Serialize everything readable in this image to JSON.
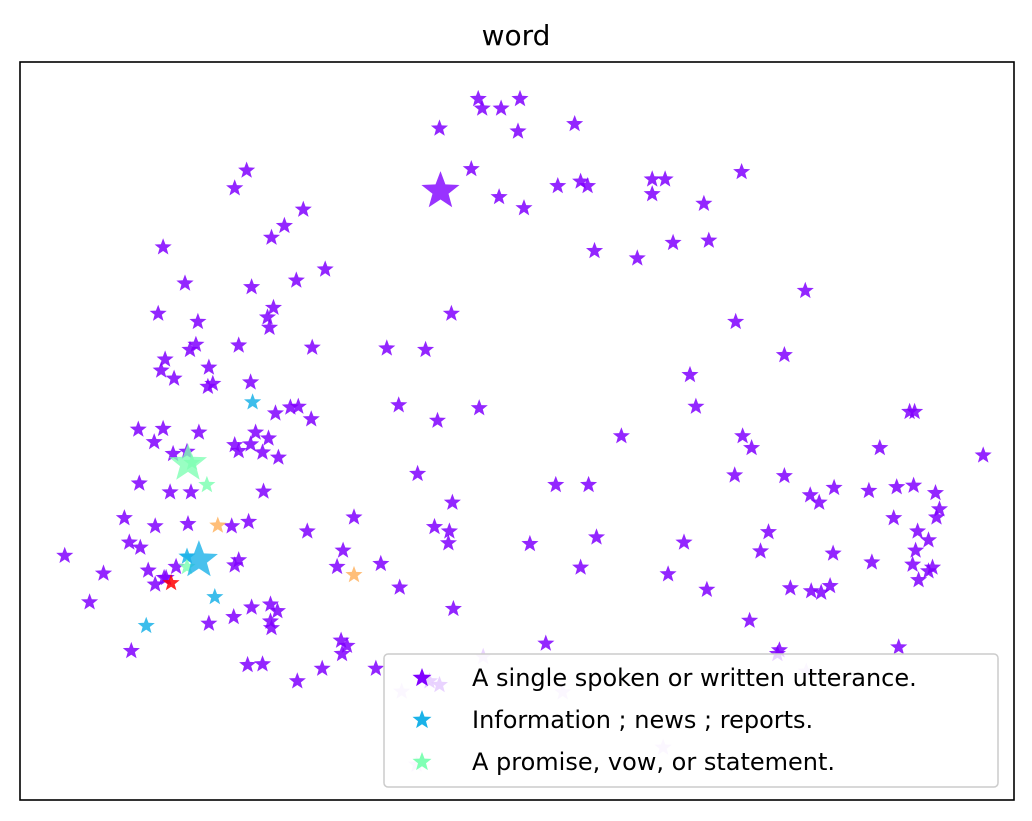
{
  "chart_data": {
    "type": "scatter",
    "title": "word",
    "xlabel": "",
    "ylabel": "",
    "show_ticks": false,
    "grid": false,
    "xlim": [
      0,
      100
    ],
    "ylim": [
      0,
      100
    ],
    "legend_position": "bottom-right",
    "series": [
      {
        "name": "A single spoken or written utterance.",
        "color": "#8000ff",
        "marker": "star",
        "points": [
          [
            46.1,
            95.0
          ],
          [
            50.3,
            95.0
          ],
          [
            48.4,
            93.7
          ],
          [
            46.5,
            93.7
          ],
          [
            55.8,
            91.6
          ],
          [
            42.2,
            91.0
          ],
          [
            50.1,
            90.6
          ],
          [
            22.8,
            85.3
          ],
          [
            72.6,
            85.1
          ],
          [
            45.4,
            85.5
          ],
          [
            63.6,
            84.1
          ],
          [
            64.9,
            84.1
          ],
          [
            56.4,
            83.8
          ],
          [
            57.1,
            83.2
          ],
          [
            54.1,
            83.2
          ],
          [
            21.6,
            82.9
          ],
          [
            48.2,
            81.7
          ],
          [
            63.6,
            82.1
          ],
          [
            68.8,
            80.8
          ],
          [
            50.7,
            80.2
          ],
          [
            28.5,
            80.0
          ],
          [
            26.6,
            77.8
          ],
          [
            25.3,
            76.2
          ],
          [
            69.3,
            75.8
          ],
          [
            65.7,
            75.5
          ],
          [
            14.4,
            74.9
          ],
          [
            57.8,
            74.4
          ],
          [
            62.1,
            73.4
          ],
          [
            30.7,
            71.9
          ],
          [
            27.8,
            70.4
          ],
          [
            16.6,
            70.0
          ],
          [
            23.3,
            69.5
          ],
          [
            79.0,
            69.0
          ],
          [
            25.5,
            66.7
          ],
          [
            24.9,
            65.4
          ],
          [
            13.9,
            65.9
          ],
          [
            17.9,
            64.8
          ],
          [
            43.4,
            65.9
          ],
          [
            25.1,
            64.0
          ],
          [
            72.0,
            64.8
          ],
          [
            17.7,
            61.7
          ],
          [
            22.0,
            61.6
          ],
          [
            17.1,
            61.0
          ],
          [
            29.4,
            61.3
          ],
          [
            36.9,
            61.2
          ],
          [
            40.8,
            61.0
          ],
          [
            14.6,
            59.7
          ],
          [
            76.9,
            60.3
          ],
          [
            19.0,
            58.6
          ],
          [
            14.2,
            58.2
          ],
          [
            15.5,
            57.1
          ],
          [
            19.4,
            56.4
          ],
          [
            18.9,
            56.0
          ],
          [
            23.2,
            56.6
          ],
          [
            67.4,
            57.6
          ],
          [
            38.1,
            53.5
          ],
          [
            46.2,
            53.1
          ],
          [
            27.2,
            53.2
          ],
          [
            28.0,
            53.3
          ],
          [
            68.0,
            53.3
          ],
          [
            25.7,
            52.4
          ],
          [
            42.0,
            51.4
          ],
          [
            29.3,
            51.6
          ],
          [
            11.9,
            50.2
          ],
          [
            14.4,
            50.3
          ],
          [
            18.0,
            49.8
          ],
          [
            13.5,
            48.5
          ],
          [
            25.0,
            49.0
          ],
          [
            21.6,
            48.1
          ],
          [
            23.7,
            49.8
          ],
          [
            23.2,
            48.2
          ],
          [
            60.5,
            49.3
          ],
          [
            89.5,
            52.6
          ],
          [
            90.0,
            52.6
          ],
          [
            72.7,
            49.3
          ],
          [
            73.6,
            47.7
          ],
          [
            15.4,
            46.9
          ],
          [
            16.8,
            47.2
          ],
          [
            22.0,
            47.3
          ],
          [
            24.4,
            47.1
          ],
          [
            26.0,
            46.4
          ],
          [
            86.5,
            47.7
          ],
          [
            96.9,
            46.7
          ],
          [
            40.0,
            44.2
          ],
          [
            71.9,
            44.0
          ],
          [
            76.9,
            43.9
          ],
          [
            53.9,
            42.7
          ],
          [
            57.2,
            42.7
          ],
          [
            12.0,
            42.9
          ],
          [
            15.1,
            41.7
          ],
          [
            17.2,
            41.7
          ],
          [
            24.5,
            41.8
          ],
          [
            81.9,
            42.3
          ],
          [
            43.5,
            40.3
          ],
          [
            79.5,
            41.3
          ],
          [
            80.4,
            40.3
          ],
          [
            85.4,
            41.9
          ],
          [
            88.2,
            42.4
          ],
          [
            89.9,
            42.6
          ],
          [
            92.1,
            41.6
          ],
          [
            10.5,
            38.2
          ],
          [
            33.6,
            38.3
          ],
          [
            87.9,
            38.2
          ],
          [
            92.5,
            39.4
          ],
          [
            92.2,
            38.3
          ],
          [
            16.9,
            37.4
          ],
          [
            13.6,
            37.1
          ],
          [
            21.3,
            37.1
          ],
          [
            23.0,
            37.7
          ],
          [
            28.9,
            36.4
          ],
          [
            41.7,
            37.0
          ],
          [
            43.2,
            36.4
          ],
          [
            90.3,
            36.4
          ],
          [
            75.3,
            36.3
          ],
          [
            58.0,
            35.6
          ],
          [
            11.0,
            34.9
          ],
          [
            12.1,
            34.2
          ],
          [
            51.3,
            34.7
          ],
          [
            43.1,
            34.8
          ],
          [
            66.8,
            34.9
          ],
          [
            32.5,
            33.8
          ],
          [
            74.5,
            33.7
          ],
          [
            90.1,
            33.8
          ],
          [
            81.8,
            33.4
          ],
          [
            91.4,
            35.2
          ],
          [
            56.4,
            31.5
          ],
          [
            22.0,
            32.5
          ],
          [
            15.7,
            31.6
          ],
          [
            31.9,
            31.6
          ],
          [
            14.7,
            30.1
          ],
          [
            21.6,
            31.8
          ],
          [
            4.5,
            33.1
          ],
          [
            36.3,
            32.0
          ],
          [
            65.2,
            30.6
          ],
          [
            8.4,
            30.7
          ],
          [
            12.9,
            31.1
          ],
          [
            14.5,
            30.1
          ],
          [
            13.6,
            29.2
          ],
          [
            85.7,
            32.2
          ],
          [
            89.8,
            31.9
          ],
          [
            91.4,
            31.0
          ],
          [
            91.8,
            31.5
          ],
          [
            90.4,
            29.8
          ],
          [
            38.2,
            28.8
          ],
          [
            69.1,
            28.5
          ],
          [
            77.5,
            28.7
          ],
          [
            79.6,
            28.3
          ],
          [
            80.6,
            28.1
          ],
          [
            81.5,
            29.0
          ],
          [
            7.0,
            26.8
          ],
          [
            23.3,
            26.1
          ],
          [
            25.2,
            26.5
          ],
          [
            25.9,
            25.6
          ],
          [
            43.6,
            25.9
          ],
          [
            19.0,
            23.9
          ],
          [
            21.5,
            24.8
          ],
          [
            73.4,
            24.3
          ],
          [
            25.3,
            23.3
          ],
          [
            25.2,
            24.2
          ],
          [
            11.2,
            20.2
          ],
          [
            32.3,
            21.6
          ],
          [
            32.9,
            20.9
          ],
          [
            32.4,
            19.8
          ],
          [
            52.9,
            21.2
          ],
          [
            22.9,
            18.3
          ],
          [
            24.4,
            18.4
          ],
          [
            30.4,
            17.8
          ],
          [
            35.8,
            17.8
          ],
          [
            76.2,
            19.8
          ],
          [
            76.4,
            20.3
          ],
          [
            88.4,
            20.7
          ],
          [
            27.9,
            16.1
          ],
          [
            41.2,
            16.1
          ],
          [
            42.2,
            15.6
          ]
        ]
      },
      {
        "name": "Information ; news ; reports.",
        "color": "#1ab2e8",
        "marker": "star",
        "points": [
          [
            23.4,
            53.9
          ],
          [
            16.8,
            33.0
          ],
          [
            19.6,
            27.5
          ],
          [
            12.7,
            23.6
          ]
        ]
      },
      {
        "name": "A promise, vow, or statement.",
        "color": "#80ffb4",
        "marker": "star",
        "points": [
          [
            17.3,
            45.7
          ],
          [
            18.8,
            42.7
          ],
          [
            16.8,
            31.6
          ]
        ]
      },
      {
        "name": "",
        "color": "#ffb360",
        "marker": "star",
        "points": [
          [
            19.9,
            37.2
          ],
          [
            33.6,
            30.5
          ]
        ]
      },
      {
        "name": "",
        "color": "#ff0000",
        "marker": "star",
        "points": [
          [
            15.2,
            29.4
          ]
        ]
      },
      {
        "name": "",
        "color": "#e6ccff",
        "marker": "star",
        "points": [
          [
            46.6,
            19.4
          ],
          [
            38.4,
            14.7
          ],
          [
            54.6,
            14.6
          ],
          [
            79.1,
            17.4
          ],
          [
            64.7,
            7.1
          ],
          [
            39.9,
            4.8
          ]
        ]
      }
    ],
    "highlighted": [
      {
        "series": 0,
        "x": 42.3,
        "y": 82.5
      },
      {
        "series": 1,
        "x": 18.0,
        "y": 32.5
      },
      {
        "series": 2,
        "x": 16.9,
        "y": 45.6
      }
    ]
  }
}
